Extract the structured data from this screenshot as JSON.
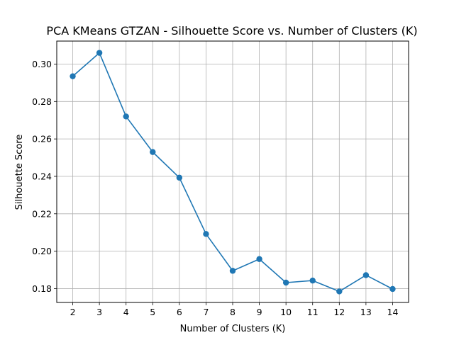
{
  "chart_data": {
    "type": "line",
    "title": "PCA KMeans GTZAN - Silhouette Score vs. Number of Clusters (K)",
    "xlabel": "Number of Clusters (K)",
    "ylabel": "Silhouette Score",
    "x": [
      2,
      3,
      4,
      5,
      6,
      7,
      8,
      9,
      10,
      11,
      12,
      13,
      14
    ],
    "series": [
      {
        "name": "",
        "values": [
          0.2935,
          0.306,
          0.272,
          0.253,
          0.2393,
          0.2092,
          0.1895,
          0.1958,
          0.1832,
          0.1843,
          0.1785,
          0.1872,
          0.1798
        ],
        "color": "#1f77b4",
        "marker": "circle"
      }
    ],
    "xticks": [
      "2",
      "3",
      "4",
      "5",
      "6",
      "7",
      "8",
      "9",
      "10",
      "11",
      "12",
      "13",
      "14"
    ],
    "yticks": [
      "0.18",
      "0.20",
      "0.22",
      "0.24",
      "0.26",
      "0.28",
      "0.30"
    ],
    "xlim": [
      1.4,
      14.6
    ],
    "ylim": [
      0.1726,
      0.3123
    ],
    "grid": true,
    "legend": "none"
  }
}
